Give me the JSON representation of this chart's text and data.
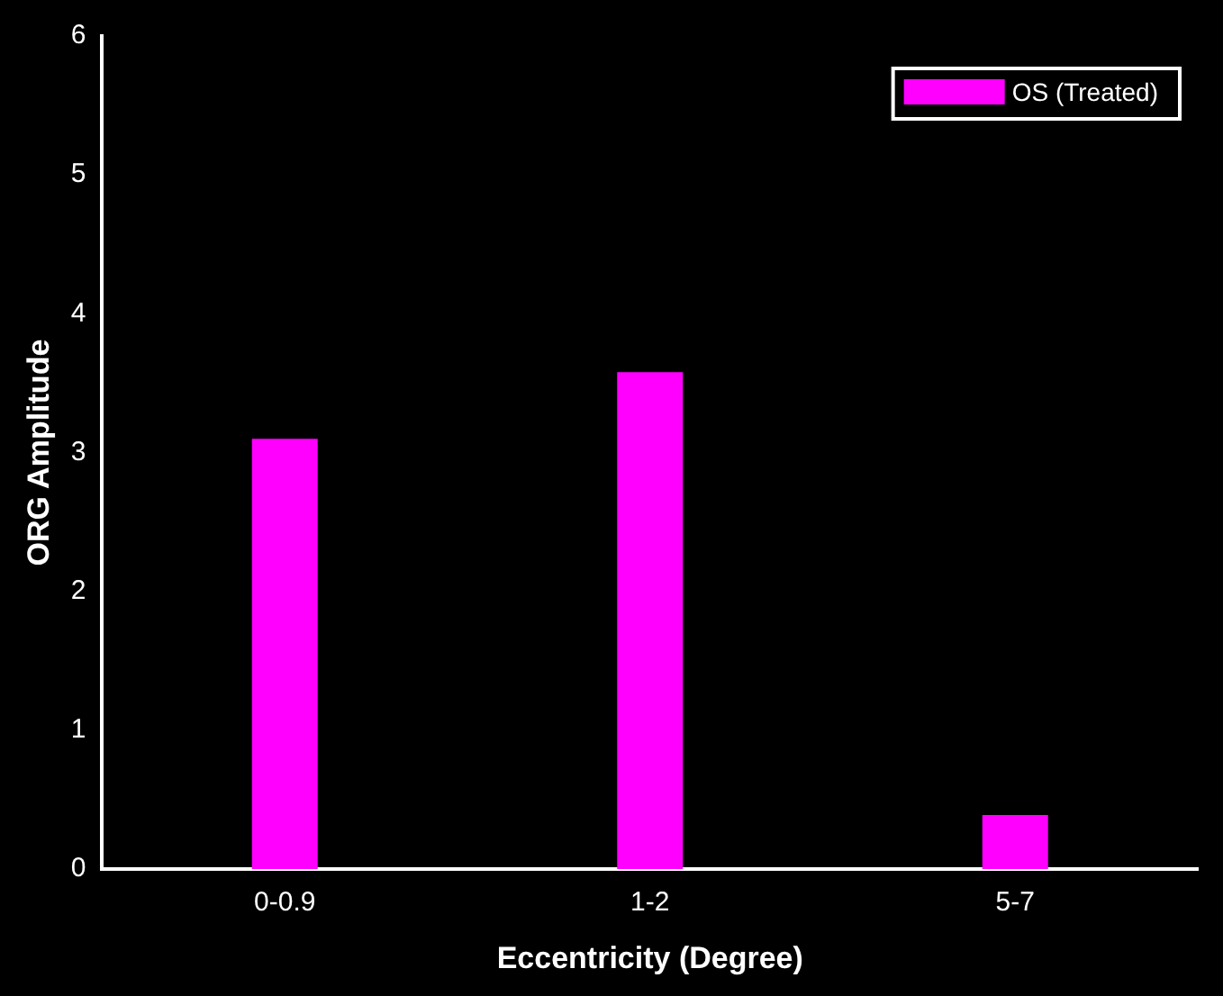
{
  "chart_data": {
    "type": "bar",
    "xlabel": "Eccentricity (Degree)",
    "ylabel": "ORG Amplitude",
    "categories": [
      "0-0.9",
      "1-2",
      "5-7"
    ],
    "series": [
      {
        "name": "OS (Treated)",
        "color": "#ff00ff",
        "values": [
          3.1,
          3.58,
          0.39
        ]
      }
    ],
    "ylim": [
      0,
      6
    ],
    "yticks": [
      0,
      1,
      2,
      3,
      4,
      5,
      6
    ],
    "grid": false,
    "legend": "top right"
  }
}
